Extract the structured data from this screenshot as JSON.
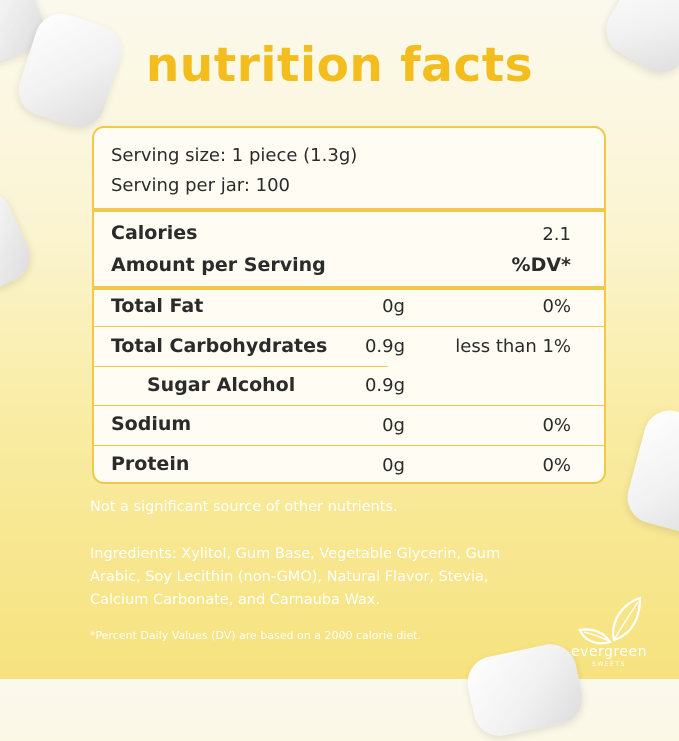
{
  "title": "nutrition facts",
  "serving": {
    "size": "Serving size: 1 piece (1.3g)",
    "per_jar": "Serving per jar: 100"
  },
  "calories": {
    "label": "Calories",
    "value": "2.1"
  },
  "amount_header": {
    "label": "Amount per Serving",
    "dv": "%DV*"
  },
  "nutrients": [
    {
      "name": "Total Fat",
      "amount": "0g",
      "dv": "0%"
    },
    {
      "name": "Total Carbohydrates",
      "amount": "0.9g",
      "dv": "less than 1%"
    },
    {
      "name": "Sugar Alcohol",
      "amount": "0.9g",
      "dv": ""
    },
    {
      "name": "Sodium",
      "amount": "0g",
      "dv": "0%"
    },
    {
      "name": "Protein",
      "amount": "0g",
      "dv": "0%"
    }
  ],
  "note": "Not a significant source of other nutrients.",
  "ingredients": [
    "Ingredients: Xylitol, Gum Base, Vegetable Glycerin, Gum",
    "Arabic, Soy Lecithin (non-GMO), Natural Flavor, Stevia,",
    "Calcium Carbonate, and Carnauba Wax."
  ],
  "footnote": "*Percent Daily Values (DV) are based on a 2000 calorie diet.",
  "brand": {
    "name": "evergreen",
    "sub": "SWEETS"
  },
  "colors": {
    "accent": "#f4bd1e",
    "border": "#f2c84a",
    "text": "#2b2b2b",
    "panel": "#fefcf3"
  }
}
